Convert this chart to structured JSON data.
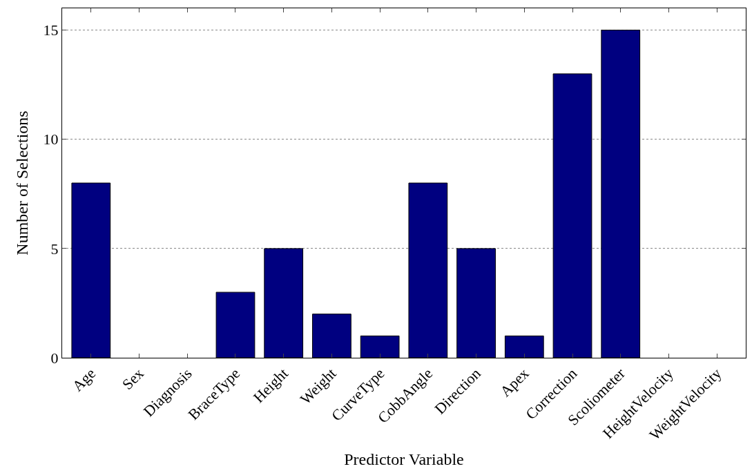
{
  "chart_data": {
    "type": "bar",
    "xlabel": "Predictor Variable",
    "ylabel": "Number of Selections",
    "categories": [
      "Age",
      "Sex",
      "Diagnosis",
      "BraceType",
      "Height",
      "Weight",
      "CurveType",
      "CobbAngle",
      "Direction",
      "Apex",
      "Correction",
      "Scoliometer",
      "HeightVelocity",
      "WeightVelocity"
    ],
    "values": [
      8,
      0,
      0,
      3,
      5,
      2,
      1,
      8,
      5,
      1,
      13,
      15,
      0,
      0
    ],
    "color": "#000080",
    "ylim": [
      0,
      16
    ],
    "yticks": [
      0,
      5,
      10,
      15
    ],
    "grid": "y"
  }
}
